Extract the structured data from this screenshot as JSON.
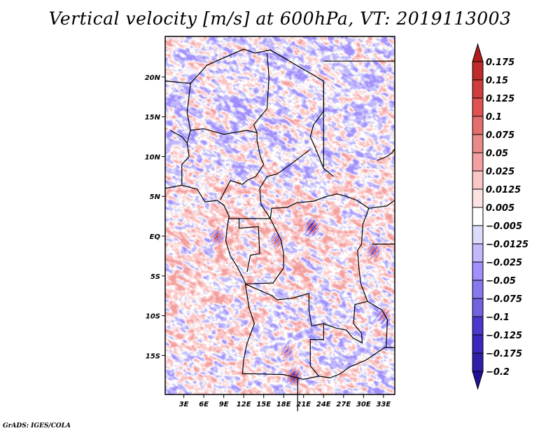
{
  "title": "Vertical velocity [m/s] at 600hPa, VT: 2019113003",
  "credit": "GrADS: IGES/COLA",
  "chart_data": {
    "type": "heatmap",
    "title": "Vertical velocity [m/s] at 600hPa, VT: 2019113003",
    "variable": "Vertical velocity",
    "units": "m/s",
    "level": "600hPa",
    "valid_time": "2019113003",
    "xlabel": "",
    "ylabel": "",
    "xlim": [
      0.2,
      34.7
    ],
    "ylim": [
      -19.9,
      25.1
    ],
    "x_ticks": [
      {
        "value": 3,
        "label": "3E"
      },
      {
        "value": 6,
        "label": "6E"
      },
      {
        "value": 9,
        "label": "9E"
      },
      {
        "value": 12,
        "label": "12E"
      },
      {
        "value": 15,
        "label": "15E"
      },
      {
        "value": 18,
        "label": "18E"
      },
      {
        "value": 21,
        "label": "21E"
      },
      {
        "value": 24,
        "label": "24E"
      },
      {
        "value": 27,
        "label": "27E"
      },
      {
        "value": 30,
        "label": "30E"
      },
      {
        "value": 33,
        "label": "33E"
      }
    ],
    "y_ticks": [
      {
        "value": 20,
        "label": "20N"
      },
      {
        "value": 15,
        "label": "15N"
      },
      {
        "value": 10,
        "label": "10N"
      },
      {
        "value": 5,
        "label": "5N"
      },
      {
        "value": 0,
        "label": "EQ"
      },
      {
        "value": -5,
        "label": "5S"
      },
      {
        "value": -10,
        "label": "10S"
      },
      {
        "value": -15,
        "label": "15S"
      }
    ],
    "colorbar": {
      "orientation": "vertical",
      "placement": "right",
      "extend": "both",
      "labels": [
        "0.175",
        "0.15",
        "0.125",
        "0.1",
        "0.075",
        "0.05",
        "0.025",
        "0.0125",
        "0.005",
        "-0.005",
        "-0.0125",
        "-0.025",
        "-0.05",
        "-0.075",
        "-0.1",
        "-0.125",
        "-0.175",
        "-0.2"
      ],
      "colors": [
        "#b01c1c",
        "#bf2a2a",
        "#cf3d3d",
        "#e05252",
        "#e46e6e",
        "#e68a8a",
        "#f4a0a0",
        "#fbc6c6",
        "#fde2e2",
        "#ffffff",
        "#dcdcfa",
        "#c2b8fc",
        "#a290fc",
        "#8878ef",
        "#7262df",
        "#4a38cc",
        "#3a28bc",
        "#2e20a8",
        "#20109a"
      ],
      "over_color": "#b01c1c",
      "under_color": "#20109a"
    },
    "field_summary": {
      "domain": "Central Africa (approx. 0E-35E, 20S-25N)",
      "overlays": "country borders and coastlines (black lines)",
      "notable_features": [
        "predominantly weak negative (blue) values over Sahara/Sahel north of ~8N",
        "weak positive (red) values over Gulf of Guinea and Atlantic near equator",
        "small intense positive/negative cells near Congo basin (~22E, 1N) and Lake Victoria region",
        "strong positive band near 16-18E, 17S and 19-20E, 18S"
      ]
    }
  }
}
